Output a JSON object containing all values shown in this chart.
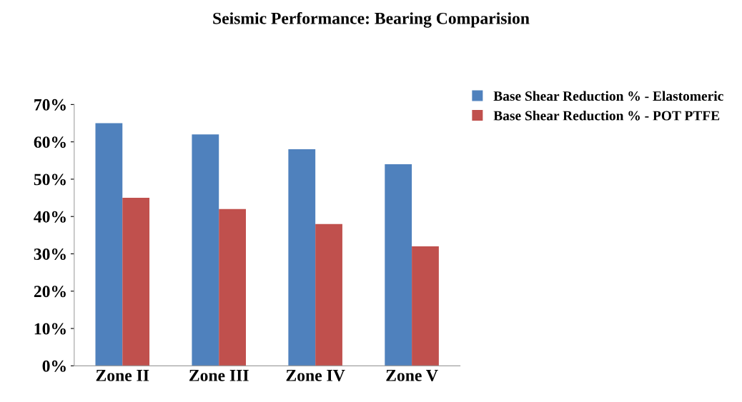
{
  "chart_data": {
    "type": "bar",
    "title": "Seismic Performance: Bearing Comparision",
    "categories": [
      "Zone II",
      "Zone III",
      "Zone IV",
      "Zone V"
    ],
    "series": [
      {
        "name": "Base Shear Reduction % - Elastomeric",
        "color": "#4f81bd",
        "values": [
          65,
          62,
          58,
          54
        ]
      },
      {
        "name": "Base Shear Reduction % - POT PTFE",
        "color": "#c0504d",
        "values": [
          45,
          42,
          38,
          32
        ]
      }
    ],
    "ylim": [
      0,
      70
    ],
    "yticks": [
      {
        "value": 0,
        "label": "0%"
      },
      {
        "value": 10,
        "label": "10%"
      },
      {
        "value": 20,
        "label": "20%"
      },
      {
        "value": 30,
        "label": "30%"
      },
      {
        "value": 40,
        "label": "40%"
      },
      {
        "value": 50,
        "label": "50%"
      },
      {
        "value": 60,
        "label": "60%"
      },
      {
        "value": 70,
        "label": "70%"
      }
    ],
    "grid": false,
    "legend": "top right"
  }
}
